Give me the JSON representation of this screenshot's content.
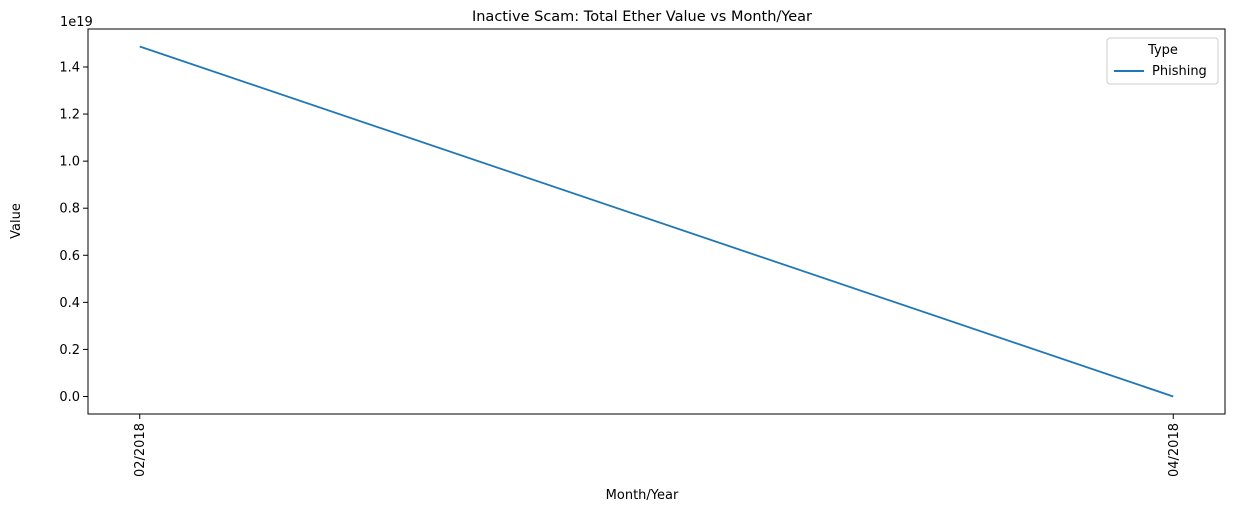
{
  "chart_data": {
    "type": "line",
    "title": "Inactive Scam: Total Ether Value vs Month/Year",
    "xlabel": "Month/Year",
    "ylabel": "Value",
    "y_offset_label": "1e19",
    "categories": [
      "02/2018",
      "04/2018"
    ],
    "series": [
      {
        "name": "Phishing",
        "values": [
          1.487e+19,
          0.0
        ],
        "color": "#1f77b4"
      }
    ],
    "ylim": [
      -7.44e+17,
      1.5614e+19
    ],
    "yticks": [
      0,
      2e+18,
      4e+18,
      6e+18,
      8e+18,
      1e+19,
      1.2e+19,
      1.4e+19
    ],
    "ytick_labels": [
      "0.0",
      "0.2",
      "0.4",
      "0.6",
      "0.8",
      "1.0",
      "1.2",
      "1.4"
    ],
    "grid": false,
    "legend": {
      "title": "Type",
      "placement": "top-right"
    }
  }
}
